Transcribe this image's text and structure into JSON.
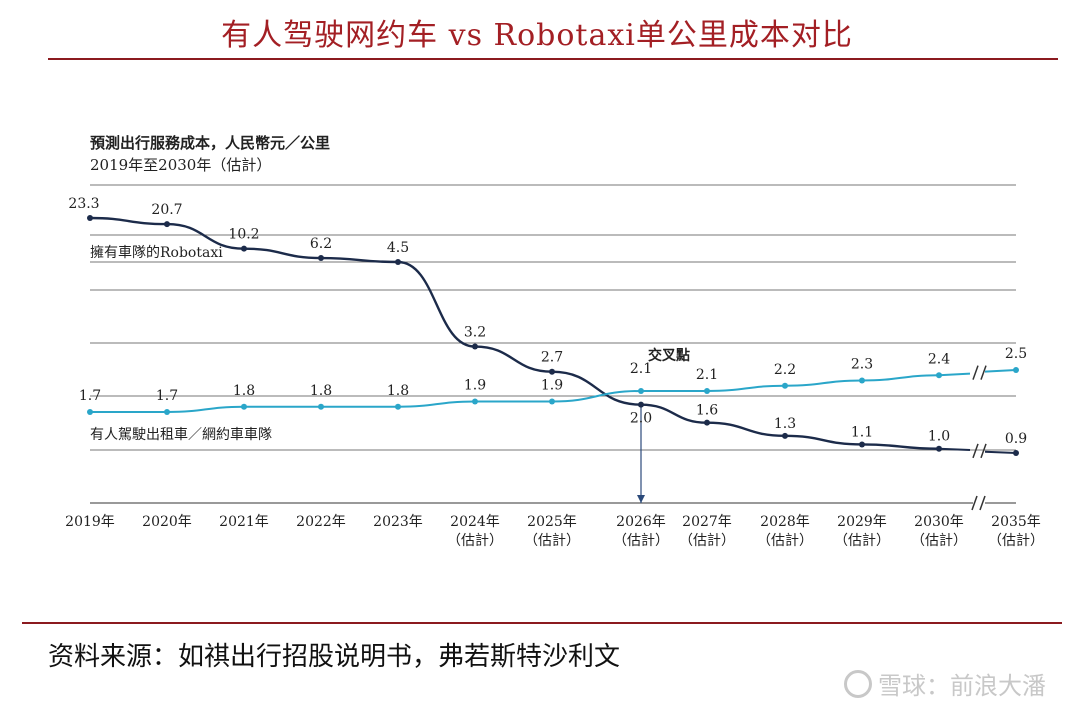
{
  "page": {
    "title": "有人驾驶网约车 vs Robotaxi单公里成本对比",
    "source": "资料来源：如祺出行招股说明书，弗若斯特沙利文",
    "watermark": "雪球：前浪大潘"
  },
  "chart_data": {
    "type": "line",
    "ylabel": "預測出行服務成本，人民幣元／公里",
    "subtitle": "2019年至2030年（估計）",
    "categories": [
      [
        "2019年",
        ""
      ],
      [
        "2020年",
        ""
      ],
      [
        "2021年",
        ""
      ],
      [
        "2022年",
        ""
      ],
      [
        "2023年",
        ""
      ],
      [
        "2024年",
        "（估計）"
      ],
      [
        "2025年",
        "（估計）"
      ],
      [
        "2026年",
        "（估計）"
      ],
      [
        "2027年",
        "（估計）"
      ],
      [
        "2028年",
        "（估計）"
      ],
      [
        "2029年",
        "（估計）"
      ],
      [
        "2030年",
        "（估計）"
      ],
      [
        "2035年",
        "（估計）"
      ]
    ],
    "axis_break": "between 2030年 and 2035年",
    "grid": true,
    "series": [
      {
        "name": "擁有車隊的Robotaxi",
        "color": "#1c2b4a",
        "values": [
          23.3,
          20.7,
          10.2,
          6.2,
          4.5,
          3.2,
          2.7,
          2.0,
          1.6,
          1.3,
          1.1,
          1.0,
          0.9
        ],
        "labels": [
          "23.3",
          "20.7",
          "10.2",
          "6.2",
          "4.5",
          "3.2",
          "2.7",
          "2.0",
          "1.6",
          "1.3",
          "1.1",
          "1.0",
          "0.9"
        ]
      },
      {
        "name": "有人駕駛出租車／網約車車隊",
        "color": "#2aa6c9",
        "values": [
          1.7,
          1.7,
          1.8,
          1.8,
          1.8,
          1.9,
          1.9,
          2.1,
          2.1,
          2.2,
          2.3,
          2.4,
          2.5
        ],
        "labels": [
          "1.7",
          "1.7",
          "1.8",
          "1.8",
          "1.8",
          "1.9",
          "1.9",
          "2.1",
          "2.1",
          "2.2",
          "2.3",
          "2.4",
          "2.5"
        ]
      }
    ],
    "annotations": [
      {
        "text": "交叉點",
        "at": "2026年"
      }
    ]
  }
}
